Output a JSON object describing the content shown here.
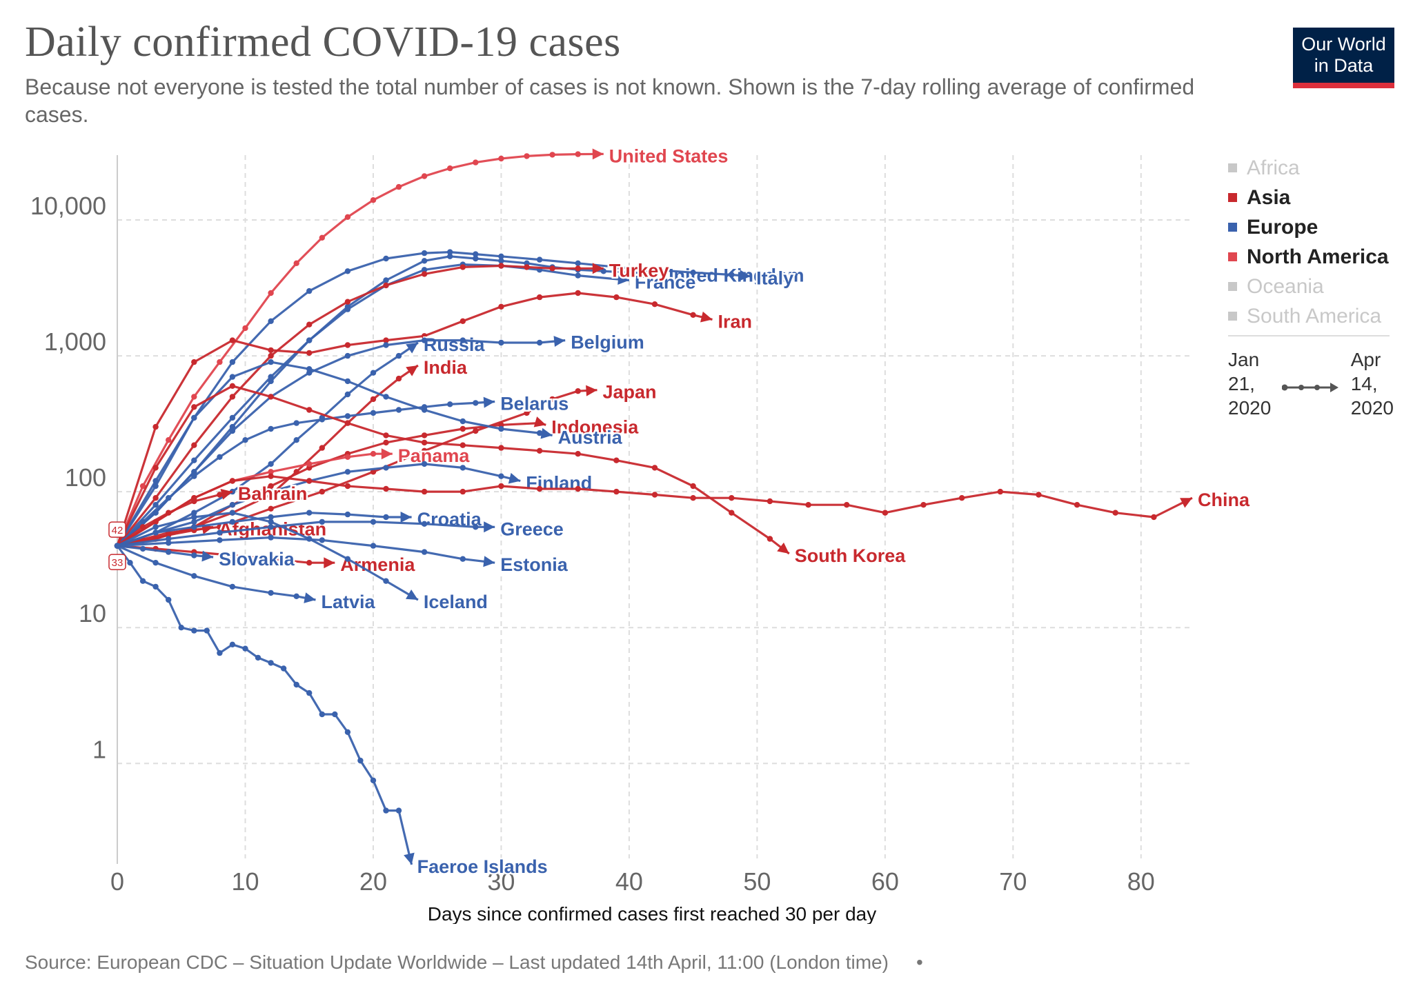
{
  "title": "Daily confirmed COVID-19 cases",
  "subtitle": "Because not everyone is tested the total number of cases is not known. Shown is the 7-day rolling average of confirmed cases.",
  "logo": {
    "line1": "Our World",
    "line2": "in Data"
  },
  "legend": [
    {
      "label": "Africa",
      "color": "#c8c8c8",
      "active": false
    },
    {
      "label": "Asia",
      "color": "#c8292e",
      "active": true
    },
    {
      "label": "Europe",
      "color": "#3a62ad",
      "active": true
    },
    {
      "label": "North America",
      "color": "#e0464f",
      "active": true
    },
    {
      "label": "Oceania",
      "color": "#c8c8c8",
      "active": false
    },
    {
      "label": "South America",
      "color": "#c8c8c8",
      "active": false
    }
  ],
  "timeline": {
    "start_line1": "Jan",
    "start_line2": "21,",
    "start_line3": "2020",
    "end_line1": "Apr",
    "end_line2": "14,",
    "end_line3": "2020"
  },
  "footer": "Source: European CDC – Situation Update Worldwide – Last updated 14th April, 11:00 (London time)",
  "footer_dot": "•",
  "colors": {
    "asia": "#c8292e",
    "europe": "#3a62ad",
    "north_america": "#e0464f",
    "grid": "#dddddd"
  },
  "chart_data": {
    "type": "line",
    "scale": "log",
    "xlabel": "Days since confirmed cases first reached 30 per day",
    "ylabel": "",
    "xlim": [
      0,
      84
    ],
    "ylim": [
      0.2,
      30000
    ],
    "x_ticks": [
      0,
      10,
      20,
      30,
      40,
      50,
      60,
      70,
      80
    ],
    "y_ticks": [
      1,
      10,
      100,
      1000,
      10000
    ],
    "y_tick_labels": [
      "1",
      "10",
      "100",
      "1,000",
      "10,000"
    ],
    "grid": true,
    "legend_position": "right",
    "start_badges": [
      "42",
      "33"
    ],
    "series": [
      {
        "name": "United States",
        "region": "north_america",
        "x": [
          0,
          2,
          4,
          6,
          8,
          10,
          12,
          14,
          16,
          18,
          20,
          22,
          24,
          26,
          28,
          30,
          32,
          34,
          36,
          38
        ],
        "y": [
          40,
          110,
          240,
          500,
          900,
          1600,
          2900,
          4800,
          7400,
          10500,
          14000,
          17500,
          21000,
          24000,
          26500,
          28300,
          29500,
          30200,
          30500,
          30600
        ]
      },
      {
        "name": "United Kingdom",
        "region": "europe",
        "x": [
          0,
          3,
          6,
          9,
          12,
          15,
          18,
          21,
          24,
          26,
          28,
          30,
          32,
          34,
          36,
          38,
          40,
          42
        ],
        "y": [
          40,
          70,
          140,
          300,
          650,
          1300,
          2300,
          3600,
          5000,
          5400,
          5200,
          5000,
          4800,
          4500,
          4300,
          4200,
          4100,
          4050
        ]
      },
      {
        "name": "Italy",
        "region": "europe",
        "x": [
          0,
          3,
          6,
          9,
          12,
          15,
          18,
          21,
          24,
          26,
          28,
          30,
          33,
          36,
          39,
          42,
          45,
          48,
          49.5
        ],
        "y": [
          40,
          120,
          350,
          900,
          1800,
          3000,
          4200,
          5200,
          5700,
          5800,
          5600,
          5400,
          5100,
          4800,
          4500,
          4300,
          4100,
          3950,
          3850
        ]
      },
      {
        "name": "France",
        "region": "europe",
        "x": [
          0,
          3,
          6,
          9,
          12,
          15,
          18,
          21,
          24,
          27,
          30,
          33,
          36,
          40
        ],
        "y": [
          40,
          80,
          170,
          350,
          700,
          1300,
          2200,
          3300,
          4300,
          4700,
          4600,
          4300,
          3900,
          3600
        ]
      },
      {
        "name": "Turkey",
        "region": "asia",
        "x": [
          0,
          3,
          6,
          9,
          12,
          15,
          18,
          21,
          24,
          27,
          30,
          32,
          34,
          36,
          38
        ],
        "y": [
          40,
          90,
          220,
          500,
          1000,
          1700,
          2500,
          3300,
          4000,
          4500,
          4600,
          4500,
          4400,
          4400,
          4400
        ]
      },
      {
        "name": "Iran",
        "region": "asia",
        "x": [
          0,
          3,
          6,
          9,
          12,
          15,
          18,
          21,
          24,
          27,
          30,
          33,
          36,
          39,
          42,
          45,
          46.5
        ],
        "y": [
          40,
          300,
          900,
          1300,
          1100,
          1050,
          1200,
          1300,
          1400,
          1800,
          2300,
          2700,
          2900,
          2700,
          2400,
          2000,
          1850
        ]
      },
      {
        "name": "Russia",
        "region": "europe",
        "x": [
          0,
          3,
          6,
          9,
          12,
          14,
          16,
          18,
          20,
          22,
          23.5
        ],
        "y": [
          40,
          50,
          70,
          100,
          160,
          240,
          350,
          520,
          750,
          1000,
          1250
        ]
      },
      {
        "name": "Belgium",
        "region": "europe",
        "x": [
          0,
          3,
          6,
          9,
          12,
          15,
          18,
          21,
          24,
          27,
          30,
          33,
          35
        ],
        "y": [
          40,
          70,
          140,
          280,
          500,
          750,
          1000,
          1200,
          1300,
          1300,
          1250,
          1250,
          1300
        ]
      },
      {
        "name": "India",
        "region": "asia",
        "x": [
          0,
          3,
          6,
          9,
          12,
          14,
          16,
          18,
          20,
          22,
          23.5
        ],
        "y": [
          40,
          45,
          55,
          70,
          95,
          140,
          210,
          320,
          480,
          680,
          850
        ]
      },
      {
        "name": "Japan",
        "region": "asia",
        "x": [
          0,
          4,
          8,
          12,
          16,
          20,
          24,
          28,
          32,
          34,
          36,
          37.5
        ],
        "y": [
          40,
          50,
          55,
          75,
          100,
          140,
          200,
          280,
          380,
          480,
          550,
          560
        ]
      },
      {
        "name": "Belarus",
        "region": "europe",
        "x": [
          0,
          2,
          4,
          6,
          8,
          10,
          12,
          14,
          16,
          18,
          20,
          22,
          24,
          26,
          28,
          29.5
        ],
        "y": [
          40,
          60,
          90,
          130,
          180,
          240,
          290,
          320,
          340,
          360,
          380,
          400,
          420,
          440,
          450,
          460
        ]
      },
      {
        "name": "Indonesia",
        "region": "asia",
        "x": [
          0,
          3,
          6,
          9,
          12,
          15,
          18,
          21,
          24,
          27,
          30,
          33,
          33.5
        ],
        "y": [
          40,
          45,
          55,
          80,
          110,
          150,
          190,
          230,
          260,
          290,
          310,
          320,
          310
        ]
      },
      {
        "name": "Austria",
        "region": "europe",
        "x": [
          0,
          3,
          6,
          9,
          12,
          15,
          18,
          21,
          24,
          27,
          30,
          33,
          34
        ],
        "y": [
          40,
          110,
          350,
          700,
          900,
          800,
          650,
          500,
          400,
          330,
          290,
          270,
          260
        ]
      },
      {
        "name": "Panama",
        "region": "north_america",
        "x": [
          0,
          3,
          6,
          9,
          12,
          15,
          18,
          20,
          21.5
        ],
        "y": [
          40,
          60,
          90,
          120,
          140,
          160,
          180,
          190,
          190
        ]
      },
      {
        "name": "Finland",
        "region": "europe",
        "x": [
          0,
          3,
          6,
          9,
          12,
          15,
          18,
          21,
          24,
          27,
          30,
          31.5
        ],
        "y": [
          40,
          50,
          60,
          80,
          100,
          120,
          140,
          150,
          160,
          150,
          130,
          120
        ]
      },
      {
        "name": "Bahrain",
        "region": "asia",
        "x": [
          0,
          2,
          4,
          6,
          8,
          9
        ],
        "y": [
          40,
          55,
          70,
          85,
          95,
          100
        ]
      },
      {
        "name": "China",
        "region": "asia",
        "x": [
          0,
          3,
          6,
          9,
          12,
          15,
          18,
          21,
          24,
          27,
          30,
          33,
          36,
          39,
          42,
          45,
          48,
          51,
          54,
          57,
          60,
          63,
          66,
          69,
          72,
          75,
          78,
          81,
          84
        ],
        "y": [
          40,
          60,
          90,
          120,
          130,
          120,
          110,
          105,
          100,
          100,
          110,
          105,
          105,
          100,
          95,
          90,
          90,
          85,
          80,
          80,
          70,
          80,
          90,
          100,
          95,
          80,
          70,
          65,
          90
        ]
      },
      {
        "name": "Afghanistan",
        "region": "asia",
        "x": [
          0,
          2,
          4,
          6,
          7.5
        ],
        "y": [
          40,
          44,
          48,
          52,
          55
        ]
      },
      {
        "name": "Croatia",
        "region": "europe",
        "x": [
          0,
          3,
          6,
          9,
          12,
          15,
          18,
          21,
          23
        ],
        "y": [
          40,
          50,
          55,
          60,
          65,
          70,
          68,
          65,
          65
        ]
      },
      {
        "name": "Greece",
        "region": "europe",
        "x": [
          0,
          4,
          8,
          12,
          16,
          20,
          24,
          28,
          29.5
        ],
        "y": [
          40,
          45,
          50,
          55,
          60,
          60,
          58,
          55,
          55
        ]
      },
      {
        "name": "South Korea",
        "region": "asia",
        "x": [
          0,
          3,
          6,
          9,
          12,
          15,
          18,
          21,
          24,
          27,
          30,
          33,
          36,
          39,
          42,
          45,
          48,
          51,
          52.5
        ],
        "y": [
          40,
          150,
          420,
          600,
          500,
          400,
          320,
          260,
          230,
          220,
          210,
          200,
          190,
          170,
          150,
          110,
          70,
          45,
          35
        ]
      },
      {
        "name": "Armenia",
        "region": "asia",
        "x": [
          0,
          3,
          6,
          9,
          12,
          15,
          17
        ],
        "y": [
          40,
          38,
          36,
          34,
          32,
          30,
          30
        ]
      },
      {
        "name": "Estonia",
        "region": "europe",
        "x": [
          0,
          4,
          8,
          12,
          16,
          20,
          24,
          27,
          29.5
        ],
        "y": [
          40,
          42,
          44,
          46,
          44,
          40,
          36,
          32,
          30
        ]
      },
      {
        "name": "Slovakia",
        "region": "europe",
        "x": [
          0,
          2,
          4,
          6,
          7.5
        ],
        "y": [
          40,
          38,
          36,
          34,
          33
        ]
      },
      {
        "name": "Iceland",
        "region": "europe",
        "x": [
          0,
          3,
          6,
          9,
          12,
          15,
          18,
          21,
          23.5
        ],
        "y": [
          40,
          55,
          65,
          70,
          60,
          45,
          32,
          22,
          16
        ]
      },
      {
        "name": "Latvia",
        "region": "europe",
        "x": [
          0,
          3,
          6,
          9,
          12,
          14,
          15.5
        ],
        "y": [
          40,
          30,
          24,
          20,
          18,
          17,
          16
        ]
      },
      {
        "name": "Faeroe Islands",
        "region": "europe",
        "x": [
          0,
          1,
          2,
          3,
          4,
          5,
          6,
          7,
          8,
          9,
          10,
          11,
          12,
          13,
          14,
          15,
          16,
          17,
          18,
          19,
          20,
          21,
          22,
          23
        ],
        "y": [
          40,
          30,
          22,
          20,
          16,
          10,
          9.5,
          9.5,
          6.5,
          7.5,
          7,
          6,
          5.5,
          5,
          3.8,
          3.3,
          2.3,
          2.3,
          1.7,
          1.05,
          0.75,
          0.45,
          0.45,
          0.18
        ]
      }
    ]
  }
}
